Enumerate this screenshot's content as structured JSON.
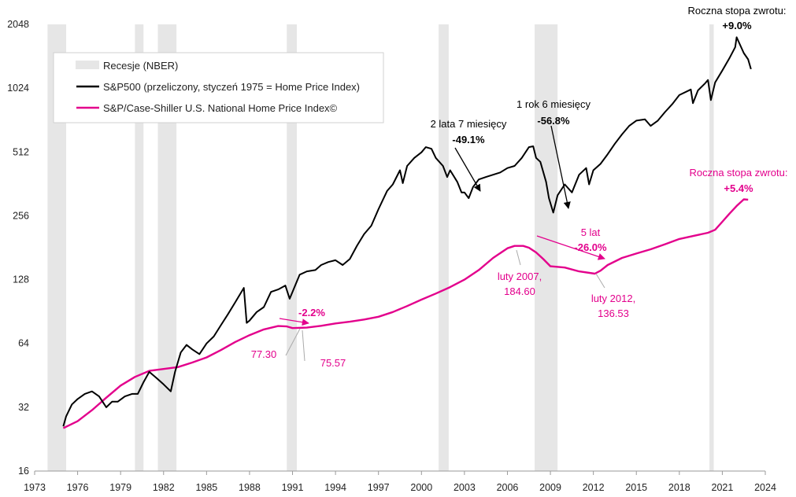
{
  "chart_data": {
    "type": "line",
    "y_scale": "log2",
    "ylim": [
      16,
      2048
    ],
    "xlim": [
      1973,
      2024
    ],
    "x_ticks": [
      "1973",
      "1976",
      "1979",
      "1982",
      "1985",
      "1988",
      "1991",
      "1994",
      "1997",
      "2000",
      "2003",
      "2006",
      "2009",
      "2012",
      "2015",
      "2018",
      "2021",
      "2024"
    ],
    "y_ticks": [
      "16",
      "32",
      "64",
      "128",
      "256",
      "512",
      "1024",
      "2048"
    ],
    "recessions": [
      [
        1973.9,
        1975.2
      ],
      [
        1980.0,
        1980.6
      ],
      [
        1981.6,
        1982.9
      ],
      [
        1990.6,
        1991.3
      ],
      [
        2001.2,
        2001.9
      ],
      [
        2007.9,
        2009.5
      ],
      [
        2020.1,
        2020.4
      ]
    ],
    "legend": [
      {
        "label": "Recesje (NBER)",
        "color": "#e6e6e6"
      },
      {
        "label": "S&P500 (przeliczony, styczeń 1975 = Home Price Index)",
        "color": "#000000"
      },
      {
        "label": "S&P/Case-Shiller U.S. National Home Price Index©",
        "color": "#e3008c"
      }
    ],
    "series": [
      {
        "name": "S&P500 (przeliczony, styczeń 1975 = Home Price Index)",
        "color": "#000000",
        "points": [
          [
            1975.0,
            26
          ],
          [
            1975.2,
            29
          ],
          [
            1975.6,
            33
          ],
          [
            1976.0,
            35
          ],
          [
            1976.5,
            37
          ],
          [
            1977.0,
            38
          ],
          [
            1977.5,
            36
          ],
          [
            1978.0,
            32
          ],
          [
            1978.4,
            34
          ],
          [
            1978.8,
            34
          ],
          [
            1979.3,
            36
          ],
          [
            1979.8,
            37
          ],
          [
            1980.2,
            37
          ],
          [
            1980.6,
            42
          ],
          [
            1981.0,
            47
          ],
          [
            1981.5,
            44
          ],
          [
            1982.0,
            41
          ],
          [
            1982.5,
            38
          ],
          [
            1982.8,
            47
          ],
          [
            1983.2,
            58
          ],
          [
            1983.6,
            63
          ],
          [
            1984.0,
            60
          ],
          [
            1984.5,
            57
          ],
          [
            1985.0,
            64
          ],
          [
            1985.5,
            69
          ],
          [
            1986.0,
            78
          ],
          [
            1986.5,
            88
          ],
          [
            1987.0,
            100
          ],
          [
            1987.6,
            117
          ],
          [
            1987.8,
            80
          ],
          [
            1988.0,
            82
          ],
          [
            1988.5,
            90
          ],
          [
            1989.0,
            95
          ],
          [
            1989.5,
            112
          ],
          [
            1990.0,
            115
          ],
          [
            1990.5,
            120
          ],
          [
            1990.8,
            104
          ],
          [
            1991.0,
            112
          ],
          [
            1991.5,
            135
          ],
          [
            1992.0,
            140
          ],
          [
            1992.6,
            142
          ],
          [
            1993.0,
            150
          ],
          [
            1993.5,
            155
          ],
          [
            1994.0,
            158
          ],
          [
            1994.5,
            150
          ],
          [
            1995.0,
            160
          ],
          [
            1995.5,
            185
          ],
          [
            1996.0,
            210
          ],
          [
            1996.5,
            230
          ],
          [
            1997.0,
            275
          ],
          [
            1997.6,
            335
          ],
          [
            1998.0,
            360
          ],
          [
            1998.5,
            420
          ],
          [
            1998.7,
            365
          ],
          [
            1999.0,
            440
          ],
          [
            1999.5,
            480
          ],
          [
            2000.0,
            510
          ],
          [
            2000.3,
            540
          ],
          [
            2000.7,
            530
          ],
          [
            2001.0,
            480
          ],
          [
            2001.5,
            440
          ],
          [
            2001.8,
            390
          ],
          [
            2002.0,
            420
          ],
          [
            2002.5,
            370
          ],
          [
            2002.8,
            330
          ],
          [
            2003.0,
            330
          ],
          [
            2003.3,
            310
          ],
          [
            2003.6,
            350
          ],
          [
            2004.0,
            380
          ],
          [
            2004.5,
            390
          ],
          [
            2005.0,
            400
          ],
          [
            2005.5,
            410
          ],
          [
            2006.0,
            430
          ],
          [
            2006.5,
            440
          ],
          [
            2007.0,
            480
          ],
          [
            2007.5,
            540
          ],
          [
            2007.8,
            545
          ],
          [
            2008.0,
            480
          ],
          [
            2008.3,
            460
          ],
          [
            2008.7,
            370
          ],
          [
            2008.9,
            310
          ],
          [
            2009.2,
            265
          ],
          [
            2009.5,
            320
          ],
          [
            2010.0,
            360
          ],
          [
            2010.5,
            330
          ],
          [
            2011.0,
            400
          ],
          [
            2011.5,
            430
          ],
          [
            2011.7,
            360
          ],
          [
            2012.0,
            420
          ],
          [
            2012.5,
            450
          ],
          [
            2013.0,
            500
          ],
          [
            2013.5,
            560
          ],
          [
            2014.0,
            620
          ],
          [
            2014.5,
            680
          ],
          [
            2015.0,
            720
          ],
          [
            2015.6,
            730
          ],
          [
            2016.0,
            680
          ],
          [
            2016.5,
            720
          ],
          [
            2017.0,
            790
          ],
          [
            2017.5,
            860
          ],
          [
            2018.0,
            950
          ],
          [
            2018.8,
            1010
          ],
          [
            2018.95,
            870
          ],
          [
            2019.3,
            1000
          ],
          [
            2019.8,
            1080
          ],
          [
            2020.0,
            1120
          ],
          [
            2020.2,
            900
          ],
          [
            2020.5,
            1090
          ],
          [
            2021.0,
            1240
          ],
          [
            2021.5,
            1420
          ],
          [
            2021.9,
            1600
          ],
          [
            2022.0,
            1780
          ],
          [
            2022.5,
            1500
          ],
          [
            2022.8,
            1400
          ],
          [
            2023.0,
            1260
          ]
        ]
      },
      {
        "name": "S&P/Case-Shiller U.S. National Home Price Index©",
        "color": "#e3008c",
        "points": [
          [
            1975.0,
            25.5
          ],
          [
            1976.0,
            27.5
          ],
          [
            1977.0,
            31
          ],
          [
            1978.0,
            35.5
          ],
          [
            1979.0,
            40.5
          ],
          [
            1980.0,
            44.5
          ],
          [
            1981.0,
            47.5
          ],
          [
            1982.0,
            48.5
          ],
          [
            1983.0,
            49.5
          ],
          [
            1984.0,
            52
          ],
          [
            1985.0,
            55
          ],
          [
            1986.0,
            59.5
          ],
          [
            1987.0,
            65
          ],
          [
            1988.0,
            70
          ],
          [
            1989.0,
            74.5
          ],
          [
            1990.0,
            77.3
          ],
          [
            1990.6,
            77.0
          ],
          [
            1991.0,
            75.6
          ],
          [
            1992.0,
            76
          ],
          [
            1993.0,
            77.5
          ],
          [
            1994.0,
            79.5
          ],
          [
            1995.0,
            81
          ],
          [
            1996.0,
            83
          ],
          [
            1997.0,
            85.5
          ],
          [
            1998.0,
            90
          ],
          [
            1999.0,
            96
          ],
          [
            2000.0,
            103
          ],
          [
            2001.0,
            110
          ],
          [
            2002.0,
            118
          ],
          [
            2003.0,
            128
          ],
          [
            2004.0,
            142
          ],
          [
            2005.0,
            162
          ],
          [
            2006.0,
            180
          ],
          [
            2006.5,
            184.6
          ],
          [
            2007.1,
            184.6
          ],
          [
            2007.5,
            181
          ],
          [
            2008.0,
            172
          ],
          [
            2008.5,
            160
          ],
          [
            2009.0,
            148
          ],
          [
            2010.0,
            146
          ],
          [
            2011.0,
            140
          ],
          [
            2012.1,
            136.5
          ],
          [
            2012.5,
            141
          ],
          [
            2013.0,
            150
          ],
          [
            2014.0,
            162
          ],
          [
            2015.0,
            170
          ],
          [
            2016.0,
            178
          ],
          [
            2017.0,
            188
          ],
          [
            2018.0,
            199
          ],
          [
            2019.0,
            206
          ],
          [
            2020.0,
            213
          ],
          [
            2020.5,
            220
          ],
          [
            2021.0,
            240
          ],
          [
            2021.5,
            262
          ],
          [
            2022.0,
            285
          ],
          [
            2022.5,
            306
          ],
          [
            2022.8,
            305
          ]
        ]
      }
    ],
    "annotations": [
      {
        "lines": [
          "Roczna stopa zwrotu:"
        ],
        "color": "#000000",
        "bold": false
      },
      {
        "lines": [
          "+9.0%"
        ],
        "color": "#000000",
        "bold": true
      },
      {
        "lines": [
          "2 lata 7 miesięcy"
        ],
        "color": "#000000",
        "bold": false
      },
      {
        "lines": [
          "-49.1%"
        ],
        "color": "#000000",
        "bold": true
      },
      {
        "lines": [
          "1 rok 6 miesięcy"
        ],
        "color": "#000000",
        "bold": false
      },
      {
        "lines": [
          "-56.8%"
        ],
        "color": "#000000",
        "bold": true
      },
      {
        "lines": [
          "Roczna stopa zwrotu:"
        ],
        "color": "#e3008c",
        "bold": false
      },
      {
        "lines": [
          "+5.4%"
        ],
        "color": "#e3008c",
        "bold": true
      },
      {
        "lines": [
          "5 lat"
        ],
        "color": "#e3008c",
        "bold": false
      },
      {
        "lines": [
          "-26.0%"
        ],
        "color": "#e3008c",
        "bold": true
      },
      {
        "lines": [
          "-2.2%"
        ],
        "color": "#e3008c",
        "bold": true
      },
      {
        "lines": [
          "77.30"
        ],
        "color": "#e3008c",
        "bold": false
      },
      {
        "lines": [
          "75.57"
        ],
        "color": "#e3008c",
        "bold": false
      },
      {
        "lines": [
          "luty 2007,",
          "184.60"
        ],
        "color": "#e3008c",
        "bold": false
      },
      {
        "lines": [
          "luty 2012,",
          "136.53"
        ],
        "color": "#e3008c",
        "bold": false
      }
    ]
  }
}
